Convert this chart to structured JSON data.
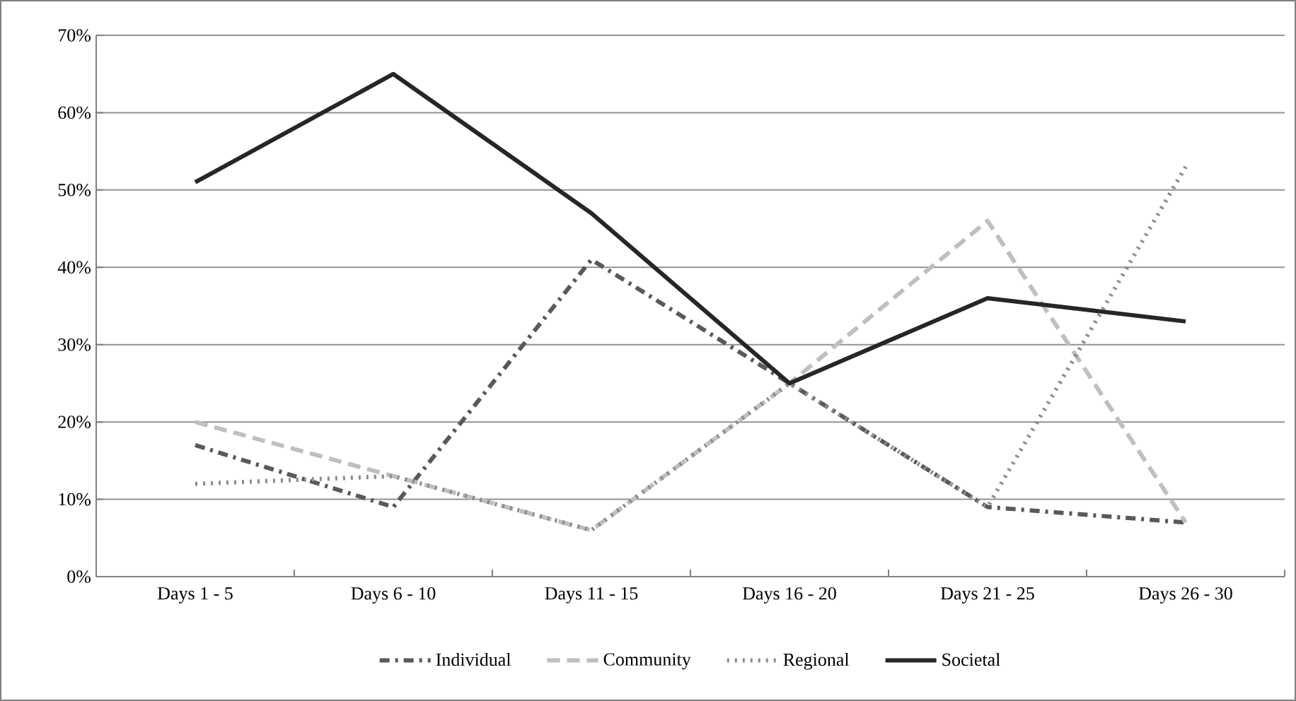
{
  "chart_data": {
    "type": "line",
    "categories": [
      "Days 1 - 5",
      "Days 6 - 10",
      "Days 11 - 15",
      "Days 16 - 20",
      "Days 21 - 25",
      "Days 26 - 30"
    ],
    "series": [
      {
        "name": "Individual",
        "color": "#595959",
        "line_style": "dashdot",
        "values": [
          17,
          9,
          41,
          25,
          9,
          7
        ]
      },
      {
        "name": "Community",
        "color": "#bfbfbf",
        "line_style": "dashed",
        "values": [
          20,
          13,
          6,
          25,
          46,
          7
        ]
      },
      {
        "name": "Regional",
        "color": "#8c8c8c",
        "line_style": "dotted",
        "values": [
          12,
          13,
          6,
          25,
          9,
          53
        ]
      },
      {
        "name": "Societal",
        "color": "#262626",
        "line_style": "solid",
        "values": [
          51,
          65,
          47,
          25,
          36,
          33
        ]
      }
    ],
    "ylim": [
      0,
      70
    ],
    "yticks": [
      {
        "value": 0,
        "label": "0%"
      },
      {
        "value": 10,
        "label": "10%"
      },
      {
        "value": 20,
        "label": "20%"
      },
      {
        "value": 30,
        "label": "30%"
      },
      {
        "value": 40,
        "label": "40%"
      },
      {
        "value": 50,
        "label": "50%"
      },
      {
        "value": 60,
        "label": "60%"
      },
      {
        "value": 70,
        "label": "70%"
      }
    ],
    "grid": "y",
    "legend": "bottom",
    "marker": "none"
  }
}
